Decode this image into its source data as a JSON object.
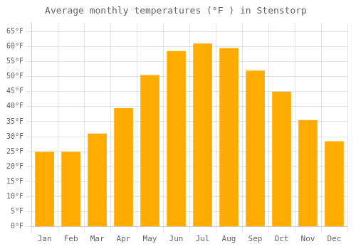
{
  "chart_data": {
    "type": "bar",
    "title": "Average monthly temperatures (°F ) in Stenstorp",
    "categories": [
      "Jan",
      "Feb",
      "Mar",
      "Apr",
      "May",
      "Jun",
      "Jul",
      "Aug",
      "Sep",
      "Oct",
      "Nov",
      "Dec"
    ],
    "values": [
      25,
      25,
      31,
      39.5,
      50.5,
      58.5,
      61,
      59.5,
      52,
      45,
      35.5,
      28.5
    ],
    "color": "#FFAB00",
    "ylim": [
      0,
      68
    ],
    "yticks": [
      {
        "value": 0,
        "label": "0°F"
      },
      {
        "value": 5,
        "label": "5°F"
      },
      {
        "value": 10,
        "label": "10°F"
      },
      {
        "value": 15,
        "label": "15°F"
      },
      {
        "value": 20,
        "label": "20°F"
      },
      {
        "value": 25,
        "label": "25°F"
      },
      {
        "value": 30,
        "label": "30°F"
      },
      {
        "value": 35,
        "label": "35°F"
      },
      {
        "value": 40,
        "label": "40°F"
      },
      {
        "value": 45,
        "label": "45°F"
      },
      {
        "value": 50,
        "label": "50°F"
      },
      {
        "value": 55,
        "label": "55°F"
      },
      {
        "value": 60,
        "label": "60°F"
      },
      {
        "value": 65,
        "label": "65°F"
      }
    ],
    "grid": true
  }
}
